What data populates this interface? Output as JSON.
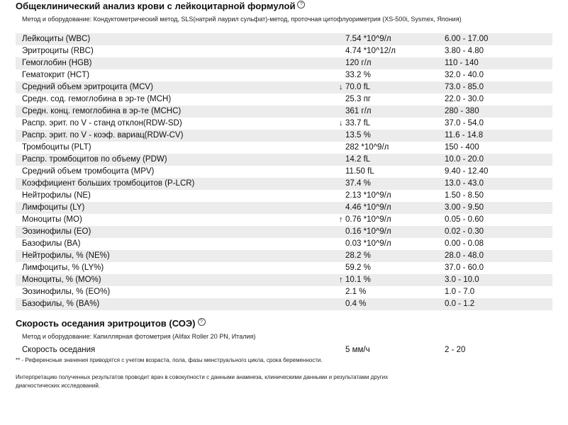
{
  "cbc": {
    "title": "Общеклинический анализ крови с лейкоцитарной формулой",
    "method": "Метод и оборудование:  Кондуктометрический метод, SLS(натрий лаурил сульфат)-метод, проточная цитофлуориметрия (XS-500i, Sysmex, Япония)",
    "rows": [
      {
        "name": "Лейкоциты (WBC)",
        "flag": "",
        "value": "7.54 *10^9/л",
        "ref": "6.00 - 17.00"
      },
      {
        "name": "Эритроциты (RBC)",
        "flag": "",
        "value": "4.74 *10^12/л",
        "ref": "3.80 - 4.80"
      },
      {
        "name": "Гемоглобин (HGB)",
        "flag": "",
        "value": "120 г/л",
        "ref": "110 - 140"
      },
      {
        "name": "Гематокрит (HCT)",
        "flag": "",
        "value": "33.2 %",
        "ref": "32.0 - 40.0"
      },
      {
        "name": "Средний объем эритроцита (MCV)",
        "flag": "↓",
        "value": "70.0 fL",
        "ref": "73.0 - 85.0"
      },
      {
        "name": "Средн. сод. гемоглобина в эр-те (MCH)",
        "flag": "",
        "value": "25.3 пг",
        "ref": "22.0 - 30.0"
      },
      {
        "name": "Средн. конц. гемоглобина в эр-те (MCHC)",
        "flag": "",
        "value": "361 г/л",
        "ref": "280 - 380"
      },
      {
        "name": "Распр. эрит. по V - станд отклон(RDW-SD)",
        "flag": "↓",
        "value": "33.7 fL",
        "ref": "37.0 - 54.0"
      },
      {
        "name": "Распр. эрит. по V - коэф. вариац(RDW-CV)",
        "flag": "",
        "value": "13.5 %",
        "ref": "11.6 - 14.8"
      },
      {
        "name": "Тромбоциты (PLT)",
        "flag": "",
        "value": "282 *10^9/л",
        "ref": "150 - 400"
      },
      {
        "name": "Распр. тромбоцитов по объему (PDW)",
        "flag": "",
        "value": "14.2 fL",
        "ref": "10.0 - 20.0"
      },
      {
        "name": "Средний объем тромбоцита (MPV)",
        "flag": "",
        "value": "11.50 fL",
        "ref": "9.40 - 12.40"
      },
      {
        "name": "Коэффициент больших тромбоцитов (P-LCR)",
        "flag": "",
        "value": "37.4 %",
        "ref": "13.0 - 43.0"
      },
      {
        "name": "Нейтрофилы (NE)",
        "flag": "",
        "value": "2.13 *10^9/л",
        "ref": "1.50 - 8.50"
      },
      {
        "name": "Лимфоциты (LY)",
        "flag": "",
        "value": "4.46 *10^9/л",
        "ref": "3.00 - 9.50"
      },
      {
        "name": "Моноциты (MO)",
        "flag": "↑",
        "value": "0.76 *10^9/л",
        "ref": "0.05 - 0.60"
      },
      {
        "name": "Эозинофилы (EO)",
        "flag": "",
        "value": "0.16 *10^9/л",
        "ref": "0.02 - 0.30"
      },
      {
        "name": "Базофилы (BA)",
        "flag": "",
        "value": "0.03 *10^9/л",
        "ref": "0.00 - 0.08"
      },
      {
        "name": "Нейтрофилы, % (NE%)",
        "flag": "",
        "value": "28.2 %",
        "ref": "28.0 - 48.0"
      },
      {
        "name": "Лимфоциты, % (LY%)",
        "flag": "",
        "value": "59.2 %",
        "ref": "37.0 - 60.0"
      },
      {
        "name": "Моноциты, % (MO%)",
        "flag": "↑",
        "value": "10.1 %",
        "ref": "3.0 - 10.0"
      },
      {
        "name": "Эозинофилы, % (EO%)",
        "flag": "",
        "value": "2.1 %",
        "ref": "1.0 - 7.0"
      },
      {
        "name": "Базофилы, % (BA%)",
        "flag": "",
        "value": "0.4 %",
        "ref": "0.0 - 1.2"
      }
    ]
  },
  "esr": {
    "title": "Скорость оседания эритроцитов (СОЭ)",
    "method": "Метод и оборудование:  Капиллярная фотометрия (Alifax Roller 20 PN, Италия)",
    "row": {
      "name": "Скорость оседания",
      "value": "5 мм/ч",
      "ref": "2 - 20"
    }
  },
  "footnote": "** - Референсные значения приводятся с учетом возраста, пола, фазы менструального цикла, срока беременности.",
  "interpretation": "Интерпретацию полученных результатов проводит врач в совокупности с данными анамнеза, клиническими данными и результатами других диагностических исследований.",
  "help_glyph": "?"
}
